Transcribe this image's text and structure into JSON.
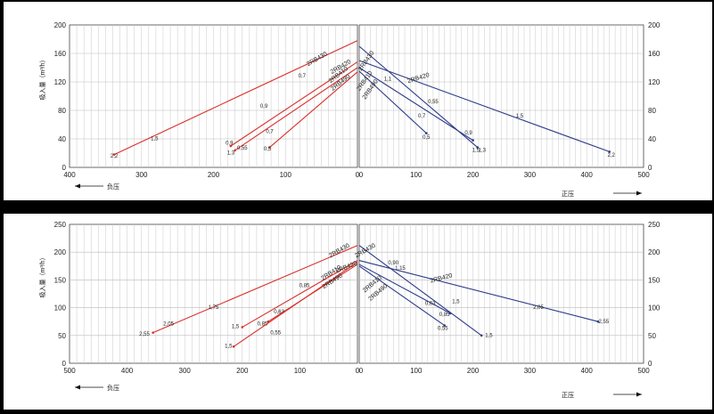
{
  "chart_data": [
    {
      "type": "line",
      "ylabel": "吸入量（m³/h）",
      "left_xlabel": "负压",
      "right_xlabel": "正压",
      "ylim": [
        0,
        200
      ],
      "yticks": [
        0,
        40,
        80,
        120,
        160,
        200
      ],
      "left_xlim": [
        0,
        400
      ],
      "left_xticks": [
        400,
        300,
        200,
        100,
        0
      ],
      "right_xlim": [
        0,
        500
      ],
      "right_xticks": [
        0,
        100,
        200,
        300,
        400,
        500
      ],
      "left_color": "#d9302a",
      "right_color": "#2b3a8a",
      "left_series": [
        {
          "name": "2RB430",
          "points": [
            [
              0,
              178
            ],
            [
              338,
              18
            ]
          ],
          "end_label": "2,2",
          "end_label_pos": [
            338,
            14
          ],
          "mid_labels": [
            {
              "text": "1,5",
              "x": 282,
              "y": 38
            }
          ]
        },
        {
          "name": "2RB420",
          "points": [
            [
              0,
              148
            ],
            [
              176,
              30
            ]
          ],
          "end_label": "1,3",
          "end_label_pos": [
            176,
            18
          ],
          "mid_labels": [
            {
              "text": "0,9",
              "x": 130,
              "y": 84
            }
          ]
        },
        {
          "name": "2RB410",
          "points": [
            [
              0,
              140
            ],
            [
              170,
              24
            ]
          ],
          "end_label": "0,9",
          "end_label_pos": [
            178,
            32
          ],
          "mid_labels": [
            {
              "text": "0,7",
              "x": 77,
              "y": 126
            },
            {
              "text": "0,55",
              "x": 160,
              "y": 25
            }
          ]
        },
        {
          "name": "2RB490",
          "points": [
            [
              0,
              134
            ],
            [
              122,
              28
            ]
          ],
          "end_label": "0,5",
          "end_label_pos": [
            125,
            24
          ],
          "mid_labels": [
            {
              "text": "0,7",
              "x": 122,
              "y": 48
            }
          ]
        }
      ],
      "right_series": [
        {
          "name": "2RB430",
          "points": [
            [
              0,
              170
            ],
            [
              208,
              28
            ]
          ],
          "end_label": "1,5",
          "end_label_pos": [
            205,
            22
          ],
          "mid_labels": [
            {
              "text": "1,1",
              "x": 50,
              "y": 122
            }
          ]
        },
        {
          "name": "2RB420",
          "points": [
            [
              0,
              150
            ],
            [
              440,
              22
            ]
          ],
          "end_label": "2,2",
          "end_label_pos": [
            443,
            15
          ],
          "mid_labels": [
            {
              "text": "1,5",
              "x": 282,
              "y": 70
            }
          ]
        },
        {
          "name": "2RB410",
          "points": [
            [
              0,
              140
            ],
            [
              200,
              38
            ]
          ],
          "end_label": "0,9",
          "end_label_pos": [
            192,
            46
          ],
          "mid_labels": [
            {
              "text": "0,7",
              "x": 110,
              "y": 70
            },
            {
              "text": "0,55",
              "x": 130,
              "y": 90
            },
            {
              "text": "1,3",
              "x": 216,
              "y": 22
            }
          ]
        },
        {
          "name": "2RB490",
          "points": [
            [
              0,
              135
            ],
            [
              118,
              48
            ]
          ],
          "end_label": "0,5",
          "end_label_pos": [
            118,
            40
          ],
          "mid_labels": []
        }
      ],
      "left_name_labels": [
        {
          "text": "2RB430",
          "x": 55,
          "y": 150,
          "rot": -30
        },
        {
          "text": "2RB420",
          "x": 22,
          "y": 139,
          "rot": -30
        },
        {
          "text": "2RB410",
          "x": 25,
          "y": 128,
          "rot": -38
        },
        {
          "text": "2RB490",
          "x": 22,
          "y": 117,
          "rot": -38
        }
      ],
      "right_name_labels": [
        {
          "text": "2RB430",
          "x": 15,
          "y": 148,
          "rot": -55
        },
        {
          "text": "2RB420",
          "x": 105,
          "y": 123,
          "rot": -17
        },
        {
          "text": "2RB410",
          "x": 12,
          "y": 120,
          "rot": -55
        },
        {
          "text": "2RB490",
          "x": 22,
          "y": 108,
          "rot": -55
        }
      ]
    },
    {
      "type": "line",
      "ylabel": "吸入量（m³/h）",
      "left_xlabel": "负压",
      "right_xlabel": "正压",
      "ylim": [
        0,
        250
      ],
      "yticks": [
        0,
        50,
        100,
        150,
        200,
        250
      ],
      "left_xlim": [
        0,
        500
      ],
      "left_xticks": [
        500,
        400,
        300,
        200,
        100,
        0
      ],
      "right_xlim": [
        0,
        500
      ],
      "right_xticks": [
        0,
        100,
        200,
        300,
        400,
        500
      ],
      "left_color": "#d9302a",
      "right_color": "#2b3a8a",
      "left_series": [
        {
          "name": "2RB430",
          "points": [
            [
              0,
              212
            ],
            [
              355,
              55
            ]
          ],
          "end_label": "2,55",
          "end_label_pos": [
            370,
            50
          ],
          "mid_labels": [
            {
              "text": "2,05",
              "x": 328,
              "y": 68
            },
            {
              "text": "1,75",
              "x": 250,
              "y": 98
            }
          ]
        },
        {
          "name": "2RB420",
          "points": [
            [
              0,
              185
            ],
            [
              200,
              65
            ]
          ],
          "end_label": "1,5",
          "end_label_pos": [
            212,
            63
          ],
          "mid_labels": [
            {
              "text": "0,85",
              "x": 92,
              "y": 137
            }
          ]
        },
        {
          "name": "2RB410",
          "points": [
            [
              0,
              178
            ],
            [
              155,
              75
            ]
          ],
          "end_label": "0,85",
          "end_label_pos": [
            165,
            68
          ],
          "mid_labels": [
            {
              "text": "0,63",
              "x": 136,
              "y": 90
            }
          ]
        },
        {
          "name": "2RB490",
          "points": [
            [
              0,
              182
            ],
            [
              215,
              30
            ]
          ],
          "end_label": "1,5",
          "end_label_pos": [
            224,
            28
          ],
          "mid_labels": [
            {
              "text": "0,55",
              "x": 142,
              "y": 52
            }
          ]
        }
      ],
      "right_series": [
        {
          "name": "2RB430",
          "points": [
            [
              0,
              212
            ],
            [
              215,
              50
            ]
          ],
          "end_label": "1,5",
          "end_label_pos": [
            228,
            47
          ],
          "mid_labels": [
            {
              "text": "1,15",
              "x": 72,
              "y": 168
            }
          ]
        },
        {
          "name": "2RB420",
          "points": [
            [
              0,
              185
            ],
            [
              420,
              75
            ]
          ],
          "end_label": "2,55",
          "end_label_pos": [
            430,
            72
          ],
          "mid_labels": [
            {
              "text": "2,05",
              "x": 315,
              "y": 98
            }
          ]
        },
        {
          "name": "2RB410",
          "points": [
            [
              0,
              178
            ],
            [
              160,
              90
            ]
          ],
          "end_label": "1,5",
          "end_label_pos": [
            170,
            108
          ],
          "mid_labels": [
            {
              "text": "0,85",
              "x": 150,
              "y": 85
            },
            {
              "text": "0,63",
              "x": 125,
              "y": 105
            }
          ]
        },
        {
          "name": "2RB490",
          "points": [
            [
              0,
              175
            ],
            [
              150,
              68
            ]
          ],
          "end_label": "0,55",
          "end_label_pos": [
            147,
            60
          ],
          "mid_labels": [
            {
              "text": "0,90",
              "x": 60,
              "y": 178
            }
          ]
        }
      ],
      "left_name_labels": [
        {
          "text": "2RB430",
          "x": 30,
          "y": 200,
          "rot": -30
        },
        {
          "text": "2RB420",
          "x": 18,
          "y": 170,
          "rot": -22
        },
        {
          "text": "2RB410",
          "x": 44,
          "y": 160,
          "rot": -33
        },
        {
          "text": "2RB490",
          "x": 42,
          "y": 145,
          "rot": -33
        }
      ],
      "right_name_labels": [
        {
          "text": "2RB430",
          "x": 12,
          "y": 200,
          "rot": -30
        },
        {
          "text": "2RB420",
          "x": 145,
          "y": 150,
          "rot": -15
        },
        {
          "text": "2RB410",
          "x": 25,
          "y": 140,
          "rot": -40
        },
        {
          "text": "2RB490",
          "x": 35,
          "y": 125,
          "rot": -40
        }
      ]
    }
  ]
}
